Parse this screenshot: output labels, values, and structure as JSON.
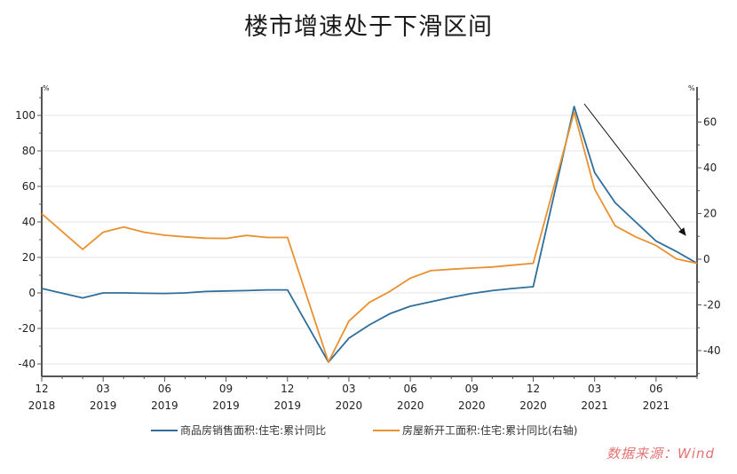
{
  "title": "楼市增速处于下滑区间",
  "watermark": "数据来源：Wind",
  "legend": {
    "series1": "商品房销售面积:住宅:累计同比",
    "series2": "房屋新开工面积:住宅:累计同比(右轴)"
  },
  "colors": {
    "series1": "#2e6e9a",
    "series2": "#e8912e",
    "axis": "#555555",
    "grid": "#e6e6e6",
    "arrow": "#111111"
  },
  "chart_data": {
    "type": "line",
    "title": "楼市增速处于下滑区间",
    "xlabel": "",
    "ylabel_left": "%",
    "ylabel_right": "%",
    "ylim_left": [
      -47,
      113
    ],
    "ylim_right": [
      -51,
      71
    ],
    "yticks_left": [
      100,
      80,
      60,
      40,
      20,
      0,
      -20,
      -40
    ],
    "yticks_right": [
      60,
      40,
      20,
      0,
      -20,
      -40
    ],
    "xtick_labels": [
      {
        "month": "12",
        "year": "2018"
      },
      {
        "month": "03",
        "year": "2019"
      },
      {
        "month": "06",
        "year": "2019"
      },
      {
        "month": "09",
        "year": "2019"
      },
      {
        "month": "12",
        "year": "2019"
      },
      {
        "month": "03",
        "year": "2020"
      },
      {
        "month": "06",
        "year": "2020"
      },
      {
        "month": "09",
        "year": "2020"
      },
      {
        "month": "12",
        "year": "2020"
      },
      {
        "month": "03",
        "year": "2021"
      },
      {
        "month": "06",
        "year": "2021"
      }
    ],
    "grid": true,
    "legend_position": "bottom",
    "x": [
      "2018-12",
      "2019-02",
      "2019-03",
      "2019-04",
      "2019-05",
      "2019-06",
      "2019-07",
      "2019-08",
      "2019-09",
      "2019-10",
      "2019-11",
      "2019-12",
      "2020-02",
      "2020-03",
      "2020-04",
      "2020-05",
      "2020-06",
      "2020-07",
      "2020-08",
      "2020-09",
      "2020-10",
      "2020-11",
      "2020-12",
      "2021-02",
      "2021-03",
      "2021-04",
      "2021-05",
      "2021-06",
      "2021-07",
      "2021-08"
    ],
    "series": [
      {
        "name": "商品房销售面积:住宅:累计同比",
        "axis": "left",
        "values": [
          2.5,
          -2.8,
          0,
          0,
          -0.2,
          -0.3,
          0,
          0.8,
          1.1,
          1.3,
          1.7,
          1.7,
          -39,
          -25.5,
          -18,
          -11.7,
          -7.5,
          -5,
          -2.5,
          -0.3,
          1.3,
          2.5,
          3.5,
          105,
          67.8,
          50.8,
          40,
          29.2,
          23.3,
          16.7
        ]
      },
      {
        "name": "房屋新开工面积:住宅:累计同比(右轴)",
        "axis": "right",
        "values": [
          19.9,
          4.3,
          11.8,
          14.1,
          11.8,
          10.5,
          9.8,
          9.2,
          9.1,
          10.4,
          9.5,
          9.5,
          -45,
          -27.1,
          -18.9,
          -14.1,
          -8.3,
          -5,
          -4.4,
          -3.9,
          -3.4,
          -2.6,
          -1.8,
          64.3,
          30.6,
          14.6,
          9.8,
          6,
          0.1,
          -1.8
        ]
      }
    ],
    "annotations": [
      {
        "type": "arrow",
        "description": "downward trend arrow from 2021-02 peak toward 2021-08"
      }
    ]
  }
}
